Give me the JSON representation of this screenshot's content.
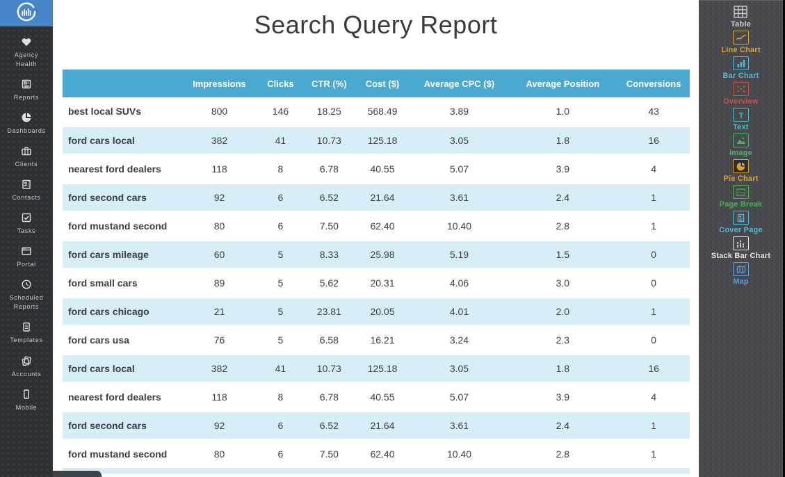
{
  "colors": {
    "header_blue": "#4aa9ce",
    "row_blue": "#d6eef6",
    "logo_blue": "#4585c8",
    "left_sidebar_bg": "#2e3237",
    "right_sidebar_bg": "#47494c"
  },
  "left_sidebar": {
    "items": [
      {
        "label": "Agency Health",
        "icon": "heart-icon"
      },
      {
        "label": "Reports",
        "icon": "report-document-icon"
      },
      {
        "label": "Dashboards",
        "icon": "pie-chart-icon"
      },
      {
        "label": "Clients",
        "icon": "briefcase-icon"
      },
      {
        "label": "Contacts",
        "icon": "contact-card-icon"
      },
      {
        "label": "Tasks",
        "icon": "checkbox-icon"
      },
      {
        "label": "Portal",
        "icon": "browser-window-icon"
      },
      {
        "label": "Scheduled Reports",
        "icon": "clock-icon"
      },
      {
        "label": "Templates",
        "icon": "document-icon"
      },
      {
        "label": "Accounts",
        "icon": "stacked-sheets-icon"
      },
      {
        "label": "Mobile",
        "icon": "smartphone-icon"
      }
    ]
  },
  "main": {
    "title": "Search Query Report",
    "table": {
      "columns": [
        "",
        "Impressions",
        "Clicks",
        "CTR (%)",
        "Cost ($)",
        "Average CPC ($)",
        "Average Position",
        "Conversions"
      ],
      "rows": [
        [
          "best local SUVs",
          "800",
          "146",
          "18.25",
          "568.49",
          "3.89",
          "1.0",
          "43"
        ],
        [
          "ford cars local",
          "382",
          "41",
          "10.73",
          "125.18",
          "3.05",
          "1.8",
          "16"
        ],
        [
          "nearest ford dealers",
          "118",
          "8",
          "6.78",
          "40.55",
          "5.07",
          "3.9",
          "4"
        ],
        [
          "ford second cars",
          "92",
          "6",
          "6.52",
          "21.64",
          "3.61",
          "2.4",
          "1"
        ],
        [
          "ford mustand second",
          "80",
          "6",
          "7.50",
          "62.40",
          "10.40",
          "2.8",
          "1"
        ],
        [
          "ford cars mileage",
          "60",
          "5",
          "8.33",
          "25.98",
          "5.19",
          "1.5",
          "0"
        ],
        [
          "ford small cars",
          "89",
          "5",
          "5.62",
          "20.31",
          "4.06",
          "3.0",
          "0"
        ],
        [
          "ford cars chicago",
          "21",
          "5",
          "23.81",
          "20.05",
          "4.01",
          "2.0",
          "1"
        ],
        [
          "ford cars usa",
          "76",
          "5",
          "6.58",
          "16.21",
          "3.24",
          "2.3",
          "0"
        ],
        [
          "ford cars local",
          "382",
          "41",
          "10.73",
          "125.18",
          "3.05",
          "1.8",
          "16"
        ],
        [
          "nearest ford dealers",
          "118",
          "8",
          "6.78",
          "40.55",
          "5.07",
          "3.9",
          "4"
        ],
        [
          "ford second cars",
          "92",
          "6",
          "6.52",
          "21.64",
          "3.61",
          "2.4",
          "1"
        ],
        [
          "ford mustand second",
          "80",
          "6",
          "7.50",
          "62.40",
          "10.40",
          "2.8",
          "1"
        ]
      ]
    }
  },
  "right_sidebar": {
    "items": [
      {
        "label": "Table",
        "icon": "table-grid-icon",
        "color": "#c9ccce"
      },
      {
        "label": "Line Chart",
        "icon": "line-chart-icon",
        "color": "#d8a438"
      },
      {
        "label": "Bar Chart",
        "icon": "bar-chart-icon",
        "color": "#55b7dc"
      },
      {
        "label": "Overview",
        "icon": "overview-dots-icon",
        "color": "#c9534b"
      },
      {
        "label": "Text",
        "icon": "text-icon",
        "color": "#49bac4"
      },
      {
        "label": "Image",
        "icon": "image-icon",
        "color": "#4daf6e"
      },
      {
        "label": "Pie Chart",
        "icon": "pie-chart-widget-icon",
        "color": "#d8a438"
      },
      {
        "label": "Page Break",
        "icon": "page-break-icon",
        "color": "#4caf50"
      },
      {
        "label": "Cover Page",
        "icon": "cover-page-icon",
        "color": "#55b7dc"
      },
      {
        "label": "Stack Bar Chart",
        "icon": "stack-bar-chart-icon",
        "color": "#e4e6e7"
      },
      {
        "label": "Map",
        "icon": "map-icon",
        "color": "#5d9cdb"
      }
    ]
  }
}
